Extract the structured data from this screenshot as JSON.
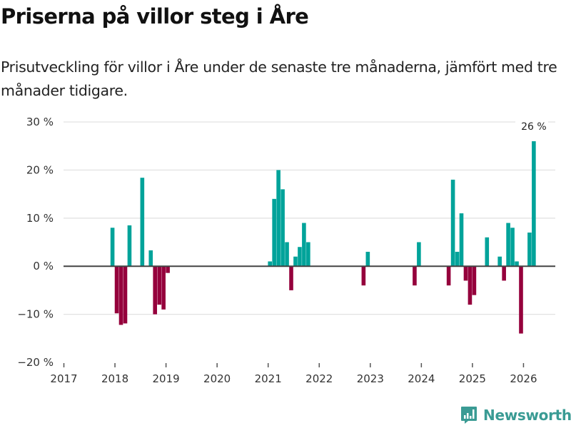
{
  "header": {
    "title": "Priserna på villor steg i Åre",
    "subtitle": "Prisutveckling för villor i Åre under de senaste tre månaderna, jämfört med tre månader tidigare."
  },
  "colors": {
    "positive": "#00a39a",
    "negative": "#95003c",
    "zero_line": "#444444",
    "grid": "#e2e2e2",
    "brand": "#3a9b94"
  },
  "brand": {
    "name": "Newsworthy",
    "icon": "bar-chart-bubble-icon"
  },
  "chart_data": {
    "type": "bar",
    "title": "Priserna på villor steg i Åre",
    "subtitle": "Prisutveckling för villor i Åre under de senaste tre månaderna, jämfört med tre månader tidigare.",
    "xlabel": "",
    "ylabel": "",
    "unit": "%",
    "ylim": [
      -20,
      30
    ],
    "yticks": [
      -20,
      -10,
      0,
      10,
      20,
      30
    ],
    "ytick_labels": [
      "−20 %",
      "−10 %",
      "0 %",
      "10 %",
      "20 %",
      "30 %"
    ],
    "xlim": [
      "2017-01",
      "2026-07"
    ],
    "xticks": [
      "2017",
      "2018",
      "2019",
      "2020",
      "2021",
      "2022",
      "2023",
      "2024",
      "2025",
      "2026"
    ],
    "grid": true,
    "legend": "none",
    "annotations": [
      {
        "x": "2026-03",
        "text": "26 %"
      }
    ],
    "points": [
      {
        "x": "2017-12",
        "y": 8
      },
      {
        "x": "2018-01",
        "y": -9.8
      },
      {
        "x": "2018-02",
        "y": -12.2
      },
      {
        "x": "2018-03",
        "y": -11.9
      },
      {
        "x": "2018-04",
        "y": 8.5
      },
      {
        "x": "2018-07",
        "y": 18.4
      },
      {
        "x": "2018-09",
        "y": 3.3
      },
      {
        "x": "2018-10",
        "y": -10
      },
      {
        "x": "2018-11",
        "y": -8
      },
      {
        "x": "2018-12",
        "y": -9
      },
      {
        "x": "2019-01",
        "y": -1.4
      },
      {
        "x": "2021-01",
        "y": 1
      },
      {
        "x": "2021-02",
        "y": 14
      },
      {
        "x": "2021-03",
        "y": 20
      },
      {
        "x": "2021-04",
        "y": 16
      },
      {
        "x": "2021-05",
        "y": 5
      },
      {
        "x": "2021-06",
        "y": -5
      },
      {
        "x": "2021-07",
        "y": 2
      },
      {
        "x": "2021-08",
        "y": 4
      },
      {
        "x": "2021-09",
        "y": 9
      },
      {
        "x": "2021-10",
        "y": 5
      },
      {
        "x": "2022-11",
        "y": -4
      },
      {
        "x": "2022-12",
        "y": 3
      },
      {
        "x": "2023-11",
        "y": -4
      },
      {
        "x": "2023-12",
        "y": 5
      },
      {
        "x": "2024-07",
        "y": -4
      },
      {
        "x": "2024-08",
        "y": 18
      },
      {
        "x": "2024-09",
        "y": 3
      },
      {
        "x": "2024-10",
        "y": 11
      },
      {
        "x": "2024-11",
        "y": -3
      },
      {
        "x": "2024-12",
        "y": -8
      },
      {
        "x": "2025-01",
        "y": -6
      },
      {
        "x": "2025-04",
        "y": 6
      },
      {
        "x": "2025-07",
        "y": 2
      },
      {
        "x": "2025-08",
        "y": -3
      },
      {
        "x": "2025-09",
        "y": 9
      },
      {
        "x": "2025-10",
        "y": 8
      },
      {
        "x": "2025-11",
        "y": 1
      },
      {
        "x": "2025-12",
        "y": -14
      },
      {
        "x": "2026-02",
        "y": 7
      },
      {
        "x": "2026-03",
        "y": 26
      }
    ]
  }
}
